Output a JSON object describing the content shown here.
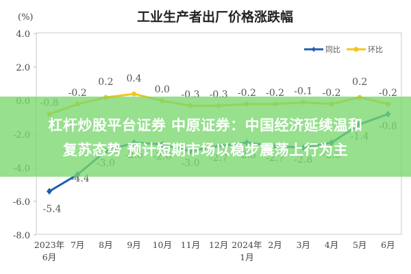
{
  "chart_data": {
    "type": "line",
    "title": "工业生产者出厂价格涨跌幅",
    "ylabel": "(%)",
    "xlabel": "",
    "ylim": [
      -8.0,
      4.0
    ],
    "yticks": [
      "4.0",
      "2.0",
      "0.0",
      "-2.0",
      "-4.0",
      "-6.0",
      "-8.0"
    ],
    "grid": false,
    "legend_position": "top-right",
    "categories": [
      "2023年6月",
      "7月",
      "8月",
      "9月",
      "10月",
      "11月",
      "12月",
      "2024年1月",
      "2月",
      "3月",
      "4月",
      "5月",
      "6月"
    ],
    "category_lines": [
      [
        "2023年",
        "6月"
      ],
      [
        "7月"
      ],
      [
        "8月"
      ],
      [
        "9月"
      ],
      [
        "10月"
      ],
      [
        "11月"
      ],
      [
        "12月"
      ],
      [
        "2024年",
        "1月"
      ],
      [
        "2月"
      ],
      [
        "3月"
      ],
      [
        "4月"
      ],
      [
        "5月"
      ],
      [
        "6月"
      ]
    ],
    "series": [
      {
        "name": "同比",
        "color": "#1f5fb0",
        "values": [
          -5.4,
          -4.4,
          -3.0,
          -2.5,
          -2.6,
          -3.0,
          -2.7,
          -2.5,
          -2.7,
          -2.8,
          -2.5,
          -1.4,
          -0.8
        ]
      },
      {
        "name": "环比",
        "color": "#f5c518",
        "values": [
          -0.8,
          -0.2,
          0.2,
          0.4,
          0.0,
          -0.3,
          -0.3,
          -0.2,
          -0.2,
          -0.1,
          -0.2,
          0.2,
          -0.2
        ]
      }
    ]
  },
  "overlay": {
    "line1": "杠杆炒股平台证券 中原证券：中国经济延续温和",
    "line2": "复苏态势 预计短期市场以稳步震荡上行为主"
  }
}
